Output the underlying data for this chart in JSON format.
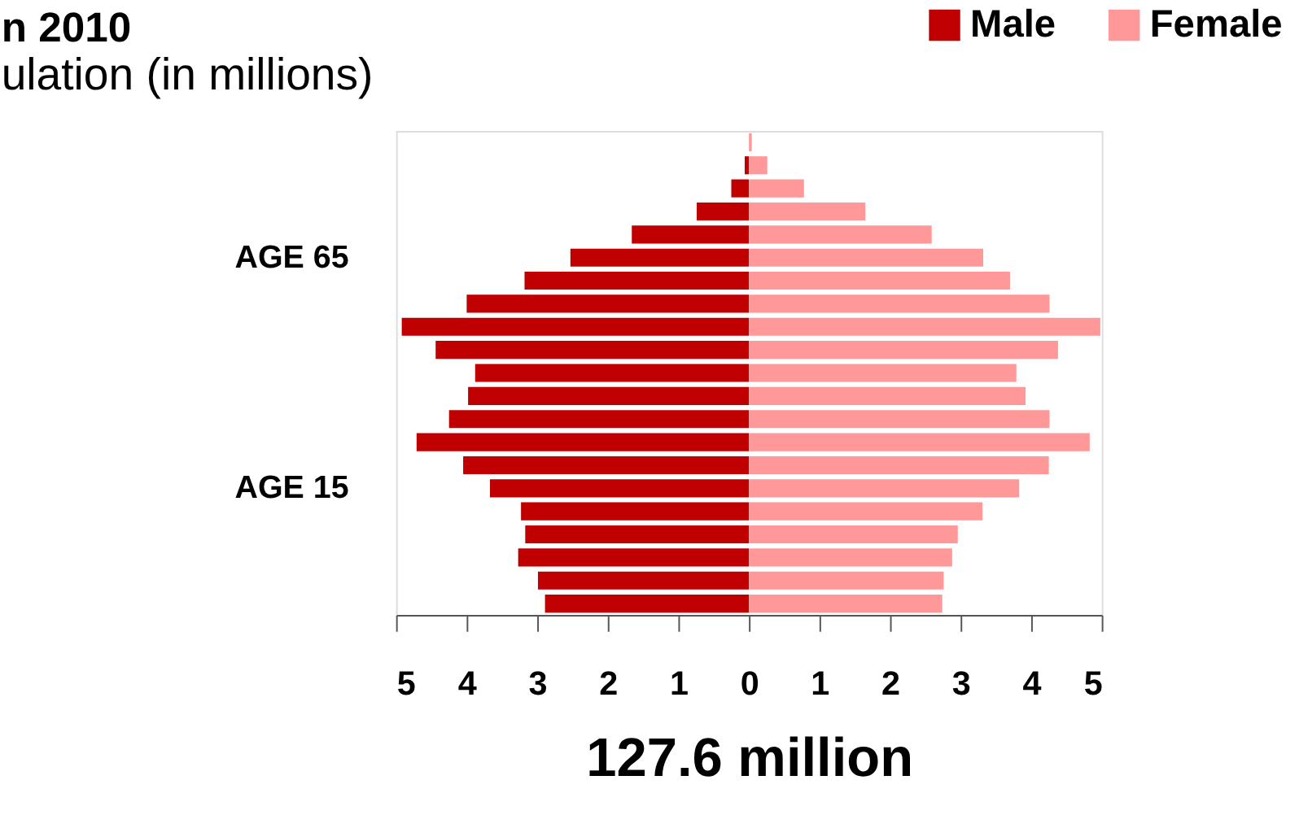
{
  "chart_data": {
    "type": "bar",
    "orientation": "horizontal",
    "title": "n 2010",
    "subtitle": "ulation (in millions)",
    "xlabel": "127.6 million",
    "categories": [
      null,
      null,
      null,
      null,
      null,
      "AGE 65",
      null,
      null,
      null,
      null,
      null,
      null,
      null,
      null,
      null,
      "AGE 15",
      null,
      null,
      null,
      null,
      null
    ],
    "series": [
      {
        "name": "Male",
        "color": "#c00000",
        "values": [
          null,
          -0.06,
          -0.25,
          -0.74,
          -1.66,
          -2.53,
          -3.18,
          -4.0,
          -4.92,
          -4.44,
          -3.88,
          -3.98,
          -4.25,
          -4.71,
          -4.05,
          -3.67,
          -3.23,
          -3.17,
          -3.27,
          -2.99,
          -2.89
        ]
      },
      {
        "name": "Female",
        "color": "#ff9999",
        "values": [
          0.04,
          0.26,
          0.78,
          1.65,
          2.59,
          3.32,
          3.7,
          4.26,
          4.98,
          4.38,
          3.79,
          3.92,
          4.26,
          4.83,
          4.25,
          3.83,
          3.31,
          2.96,
          2.88,
          2.76,
          2.74
        ]
      }
    ],
    "xlim": [
      -5,
      5
    ],
    "xticks": [
      {
        "value": -5,
        "label": "5"
      },
      {
        "value": -4,
        "label": "4"
      },
      {
        "value": -3,
        "label": "3"
      },
      {
        "value": -2,
        "label": "2"
      },
      {
        "value": -1,
        "label": "1"
      },
      0,
      1,
      2,
      3,
      4,
      5
    ],
    "grid": false,
    "legend": "top right",
    "stacked": true
  }
}
